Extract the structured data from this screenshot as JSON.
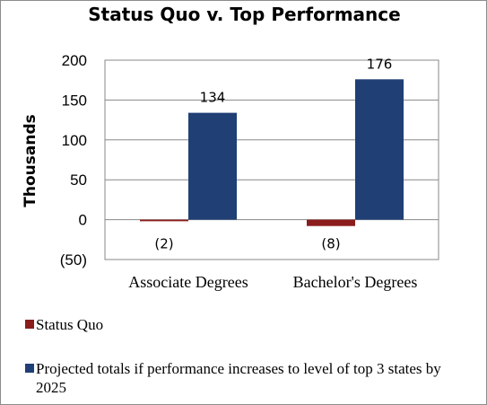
{
  "chart_data": {
    "type": "bar",
    "title": "Status Quo v. Top Performance",
    "ylabel": "Thousands",
    "xlabel": "",
    "categories": [
      "Associate Degrees",
      "Bachelor's Degrees"
    ],
    "series": [
      {
        "name": "Status Quo",
        "color": "#8b1c1c",
        "values": [
          -2,
          -8
        ],
        "labels": [
          "(2)",
          "(8)"
        ]
      },
      {
        "name": "Projected totals if performance increases to level of top 3 states by 2025",
        "color": "#1f3f75",
        "values": [
          134,
          176
        ],
        "labels": [
          "134",
          "176"
        ]
      }
    ],
    "ylim": [
      -50,
      200
    ],
    "yticks": [
      {
        "value": 200,
        "label": "200"
      },
      {
        "value": 150,
        "label": "150"
      },
      {
        "value": 100,
        "label": "100"
      },
      {
        "value": 50,
        "label": "50"
      },
      {
        "value": 0,
        "label": "0"
      },
      {
        "value": -50,
        "label": "(50)"
      }
    ],
    "grid": true,
    "legend_position": "bottom"
  }
}
